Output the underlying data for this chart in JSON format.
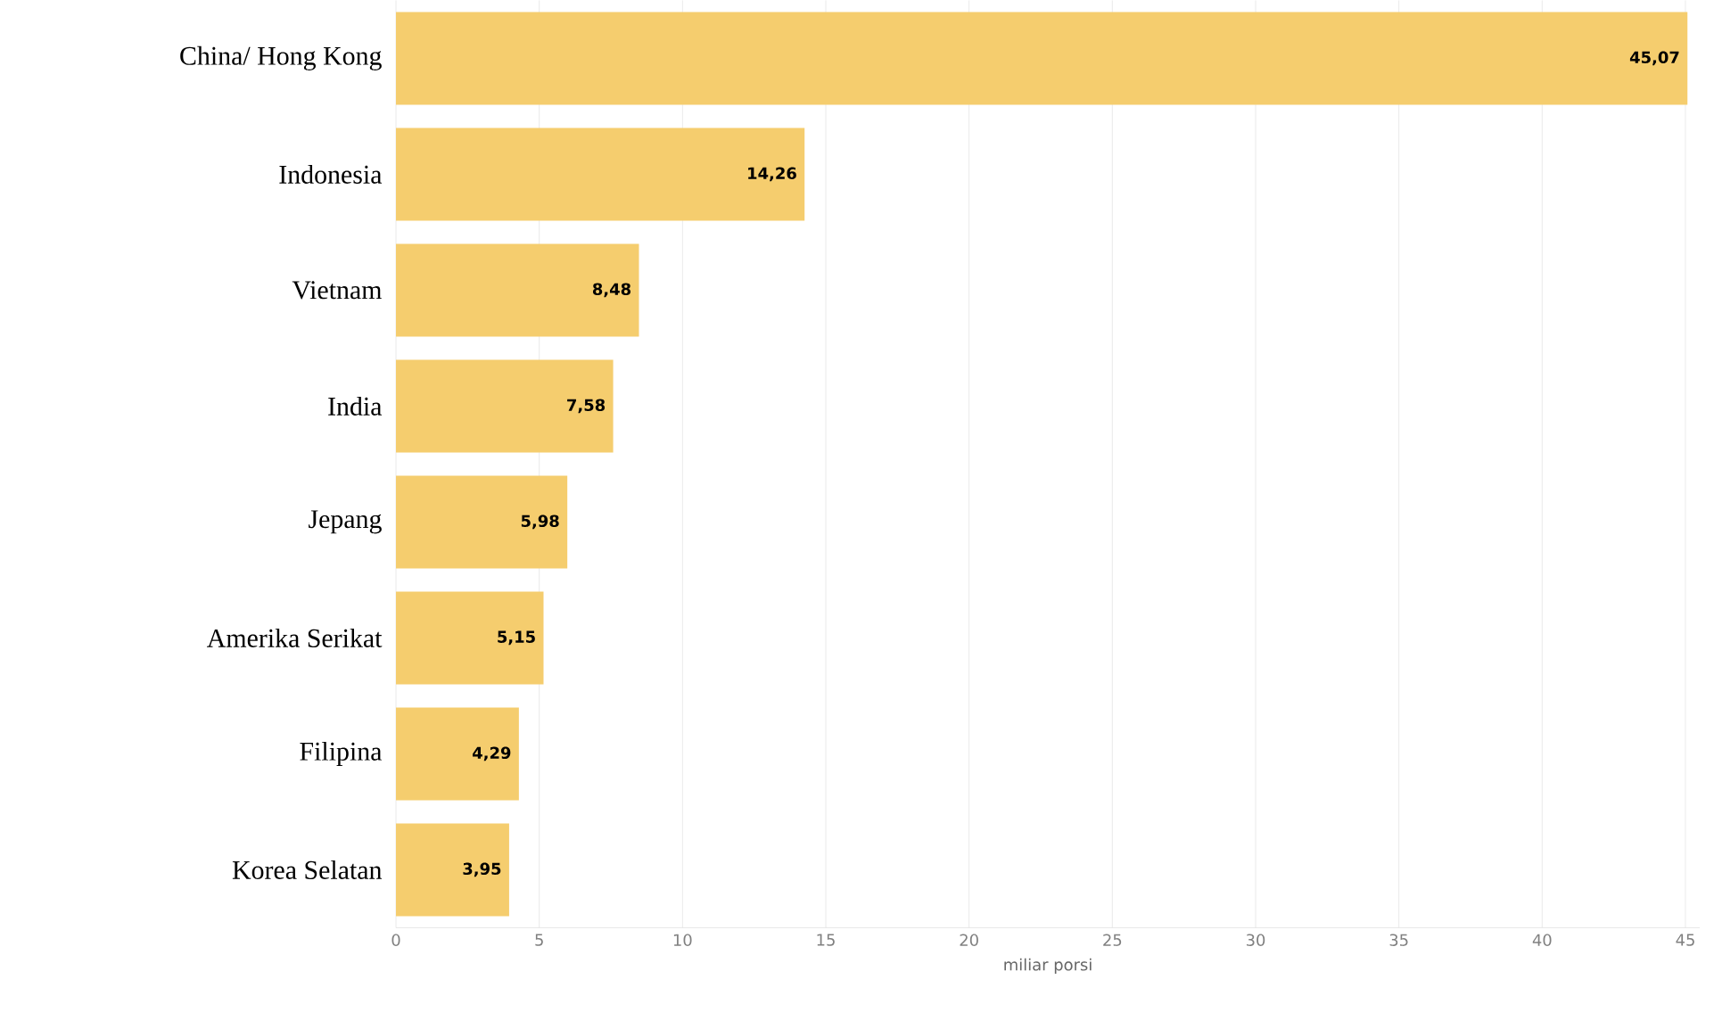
{
  "chart_data": {
    "type": "bar",
    "orientation": "horizontal",
    "xlabel": "miliar porsi",
    "categories": [
      "China/ Hong Kong",
      "Indonesia",
      "Vietnam",
      "India",
      "Jepang",
      "Amerika Serikat",
      "Filipina",
      "Korea Selatan"
    ],
    "values": [
      45.07,
      14.26,
      8.48,
      7.58,
      5.98,
      5.15,
      4.29,
      3.95
    ],
    "value_labels": [
      "45,07",
      "14,26",
      "8,48",
      "7,58",
      "5,98",
      "5,15",
      "4,29",
      "3,95"
    ],
    "color": "#f5cd6e",
    "xlim": [
      0,
      45.5
    ],
    "xticks": [
      0,
      5,
      10,
      15,
      20,
      25,
      30,
      35,
      40,
      45
    ],
    "grid": "x"
  }
}
